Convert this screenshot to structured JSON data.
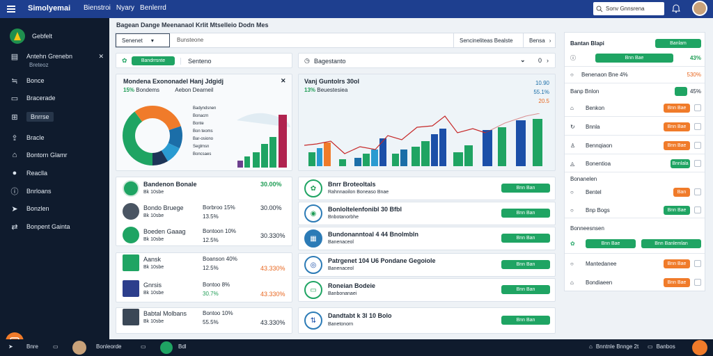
{
  "app": {
    "brand": "Simolyemai",
    "nav": [
      "Bienstroi",
      "Nyary",
      "Benlerrd"
    ],
    "search_placeholder": "Sonv Gnnsrena"
  },
  "sidebar": {
    "header": "Gebfelt",
    "items": [
      {
        "label": "Antehn Grenebn",
        "sub": "Breteoz",
        "icon": "dashboard-icon"
      },
      {
        "label": "Bonce",
        "icon": "layers-icon"
      },
      {
        "label": "Bracerade",
        "icon": "document-icon"
      },
      {
        "label": "Bnrrse",
        "icon": "grid-icon",
        "active": true
      },
      {
        "label": "Bracle",
        "icon": "upload-icon"
      },
      {
        "label": "Bontorn Glamr",
        "icon": "bank-icon"
      },
      {
        "label": "Reaclla",
        "icon": "user-icon"
      },
      {
        "label": "Bnrloans",
        "icon": "info-icon"
      },
      {
        "label": "Bonzlen",
        "icon": "send-icon"
      },
      {
        "label": "Bonpent Gainta",
        "icon": "share-icon"
      }
    ]
  },
  "main": {
    "breadcrumb": "Bagean Dange Meenanaol Krlit Mtselleio Dodn Mes",
    "toolbar": {
      "select": "Senenet",
      "field": "Bunsteone",
      "right1": "Sencineliteas Bealste",
      "right2": "Bensa"
    },
    "filter_left": {
      "pill": "Bandrrsnte",
      "text": "Senteno"
    },
    "filter_right": {
      "text": "Bagestanto",
      "value": "0"
    },
    "chart1": {
      "title": "Mondena Exononadel Hanj Jdgidj",
      "sub_pct": "15%",
      "sub_label": "Bondems",
      "sub_right": "Aebon Dearneil",
      "legend": [
        "Badyndsnen",
        "Bonacrn",
        "Bonte",
        "Bon teoms",
        "Bar-osiono",
        "Seglmsn",
        "Boncsaes"
      ]
    },
    "chart2": {
      "title": "Vanj Guntolrs 30ol",
      "sub_pct": "13%",
      "sub_label": "Beuestesiea",
      "right_top": "10.90",
      "right_mid": "55.1%",
      "right_low": "20.5"
    },
    "people": [
      {
        "name": "Bandenon Bonale",
        "sub": "Bk 10sbe",
        "col2": "",
        "col3": "",
        "val": "30.00%",
        "val_color": "green"
      },
      {
        "name": "Bondo Bruege",
        "sub": "Bk 10sbe",
        "col2": "Borbroo 15%",
        "col3": "13.5%",
        "val": "30.00%",
        "val_color": "dark"
      },
      {
        "name": "Boeden Gaaag",
        "sub": "Bk 10sbe",
        "col2": "Bontoon 10%",
        "col3": "12.5%",
        "val": "30.330%",
        "val_color": "dark"
      },
      {
        "name": "Aansk",
        "sub": "Bk 10sbe",
        "col2": "Boanson 40%",
        "col3": "12.5%",
        "val": "43.330%",
        "val_color": "orange"
      },
      {
        "name": "Gnrsis",
        "sub": "Bk 10sbe",
        "col2": "Bontoo 8%",
        "col3": "30.7%",
        "val": "43.330%",
        "val_color": "orange"
      },
      {
        "name": "Babtal Molbans",
        "sub": "Bk 10sbe",
        "col2": "Bontoo 10%",
        "col3": "55.5%",
        "val": "43.330%",
        "val_color": "dark"
      }
    ],
    "tasks": [
      {
        "title": "Bnrr Broteoltals",
        "sub": "Rahnnaoilon Boneaso Bnae",
        "btn": "Bnn Ban"
      },
      {
        "title": "Bonloltelenfonibl 30 Bfbl",
        "sub": "Bnbotanorbhe",
        "btn": "Bnn Ban"
      },
      {
        "title": "Bundonanntoal 4 44 Bnolmbln",
        "sub": "Banenaceol",
        "btn": "Bnn Ban"
      },
      {
        "title": "Patrgenet 104 U6 Pondane Gegoiole",
        "sub": "Banenaceol",
        "btn": "Bnn Ban"
      },
      {
        "title": "Roneian Bodeie",
        "sub": "Banbonanaei",
        "btn": "Bnn Ban"
      },
      {
        "title": "Dandtabt k 3l 10 Bolo",
        "sub": "Banetonorn",
        "btn": "Bnn Ban"
      }
    ],
    "right_panel": {
      "header": "Bantan Blapi",
      "header_btn": "Banlam",
      "row1": {
        "btn": "Bnn Bae",
        "value": "43%"
      },
      "row2": {
        "label": "Benenaon Bne 4%",
        "value": "530%"
      },
      "section1": "Banp Bnlon",
      "section1_value": "45%",
      "items1": [
        {
          "label": "Benkon",
          "btn": "Bnn Bae",
          "btn_color": "orange"
        },
        {
          "label": "Bnnla",
          "btn": "Bnn Bae",
          "btn_color": "orange"
        },
        {
          "label": "Bennqiaon",
          "btn": "Bnn Bae",
          "btn_color": "orange"
        },
        {
          "label": "Bonentioa",
          "btn": "Bnnlala",
          "btn_color": "green"
        }
      ],
      "section2": "Bonanelen",
      "items2": [
        {
          "label": "Bentel",
          "btn": "Ban",
          "btn_color": "orange"
        },
        {
          "label": "Bnp Bogs",
          "btn": "Bnn Bae",
          "btn_color": "green"
        }
      ],
      "section3": "Bonneesnsen",
      "section3_btn1": "Bnn Bae",
      "section3_btn2": "Bnn Banlemlan",
      "items3": [
        {
          "label": "Mantedanee",
          "btn": "Bnn Bae",
          "btn_color": "orange"
        },
        {
          "label": "Bondiaeen",
          "btn": "Bnn Bae",
          "btn_color": "orange"
        }
      ]
    }
  },
  "bottombar": {
    "left1": "Bnre",
    "left2": "Bonleorde",
    "left3": "Bdl",
    "right1": "Bnntnle Bnnge 2t",
    "right2": "Banbos"
  },
  "colors": {
    "topbar": "#1e3f8f",
    "sidebar": "#0f1b2d",
    "accent": "#1fa463",
    "warn": "#f07b2a"
  }
}
